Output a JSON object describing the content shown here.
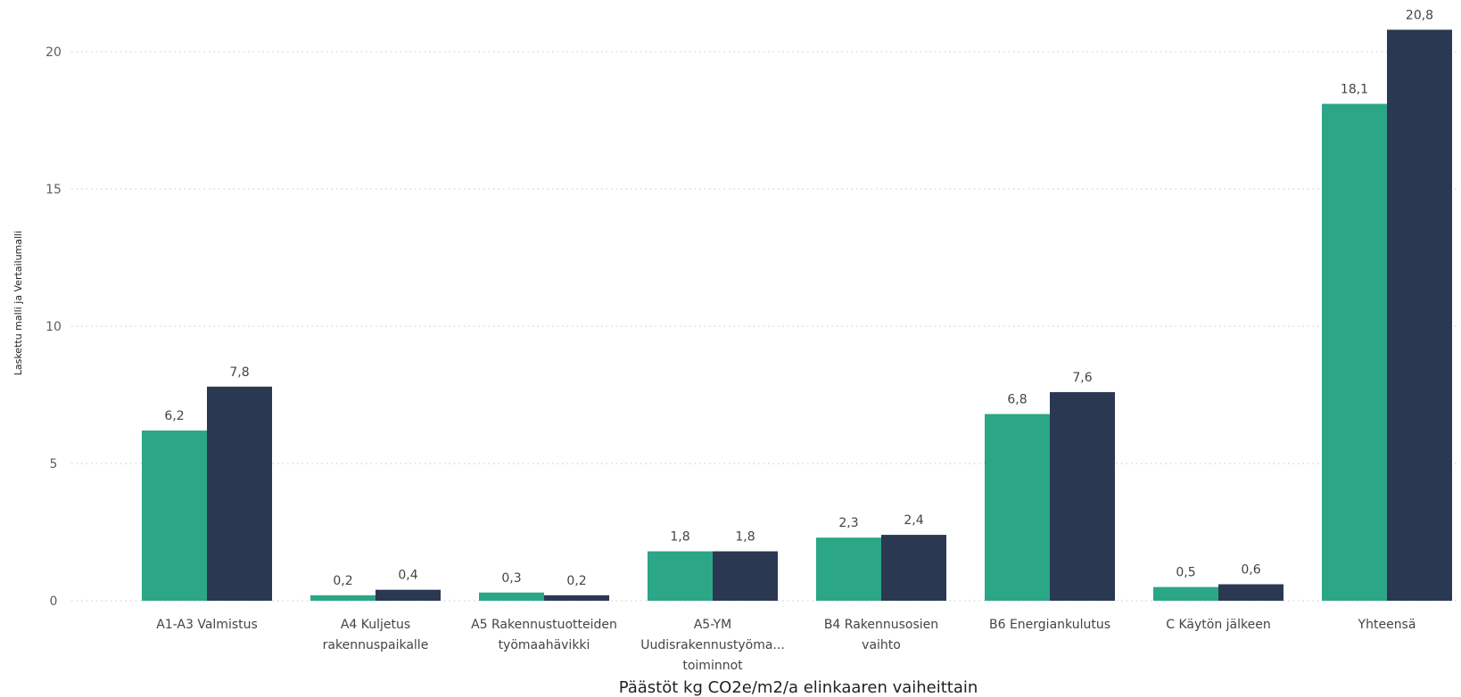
{
  "chart_data": {
    "type": "bar",
    "title": "",
    "xlabel": "Päästöt kg CO2e/m2/a elinkaaren vaiheittain",
    "ylabel": "Laskettu malli ja Vertailumalli",
    "ylim": [
      0,
      22
    ],
    "yticks": [
      "0",
      "5",
      "10",
      "15",
      "20"
    ],
    "grid": true,
    "legend": "none",
    "categories": [
      [
        "A1-A3 Valmistus"
      ],
      [
        "A4 Kuljetus",
        "rakennuspaikalle"
      ],
      [
        "A5 Rakennustuotteiden",
        "työmaahävikki"
      ],
      [
        "A5-YM",
        "Uudisrakennustyöma...",
        "toiminnot"
      ],
      [
        "B4 Rakennusosien",
        "vaihto"
      ],
      [
        "B6 Energiankulutus"
      ],
      [
        "C Käytön jälkeen"
      ],
      [
        "Yhteensä"
      ]
    ],
    "series": [
      {
        "color": "#2ba686",
        "values": [
          6.2,
          0.2,
          0.3,
          1.8,
          2.3,
          6.8,
          0.5,
          18.1
        ],
        "labels": [
          "6,2",
          "0,2",
          "0,3",
          "1,8",
          "2,3",
          "6,8",
          "0,5",
          "18,1"
        ]
      },
      {
        "color": "#2b3852",
        "values": [
          7.8,
          0.4,
          0.2,
          1.8,
          2.4,
          7.6,
          0.6,
          20.8
        ],
        "labels": [
          "7,8",
          "0,4",
          "0,2",
          "1,8",
          "2,4",
          "7,6",
          "0,6",
          "20,8"
        ]
      }
    ]
  }
}
